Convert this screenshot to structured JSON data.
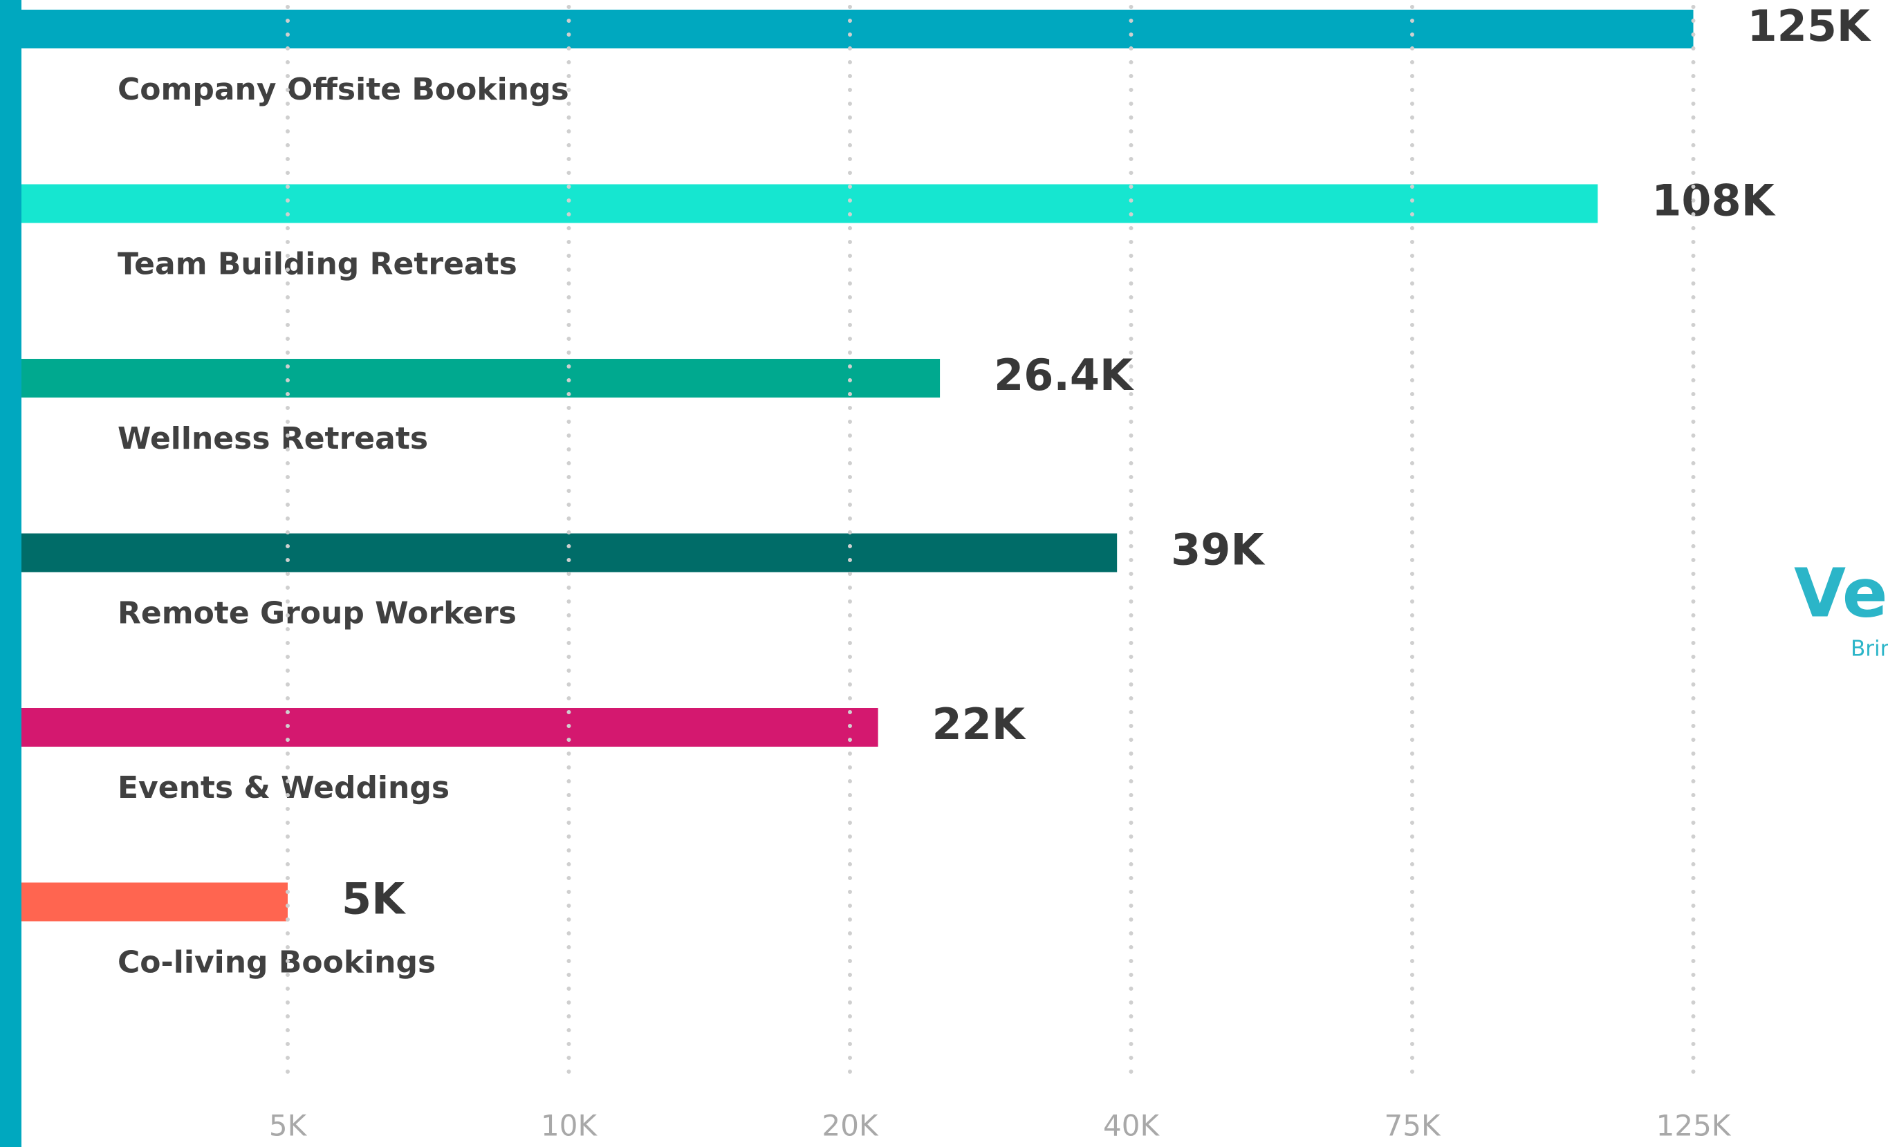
{
  "chart_data": {
    "type": "bar",
    "orientation": "horizontal",
    "categories": [
      "Company Offsite Bookings",
      "Team Building Retreats",
      "Wellness Retreats",
      "Remote Group Workers",
      "Events & Weddings",
      "Co-living Bookings"
    ],
    "values": [
      125000,
      108000,
      26400,
      39000,
      22000,
      5000
    ],
    "value_labels": [
      "125K",
      "108K",
      "26.4K",
      "39K",
      "22K",
      "5K"
    ],
    "colors": [
      "#00a8bf",
      "#16e6d0",
      "#00a98f",
      "#006c68",
      "#d4186f",
      "#ff6550"
    ],
    "xlim": [
      0,
      125000
    ],
    "xticks": [
      {
        "value": 5000,
        "label": "5K"
      },
      {
        "value": 10000,
        "label": "10K"
      },
      {
        "value": 20000,
        "label": "20K"
      },
      {
        "value": 40000,
        "label": "40K"
      },
      {
        "value": 75000,
        "label": "75K"
      },
      {
        "value": 125000,
        "label": "125K"
      }
    ],
    "grid": true,
    "logo": "Ve",
    "logo_tagline": "Brin"
  }
}
